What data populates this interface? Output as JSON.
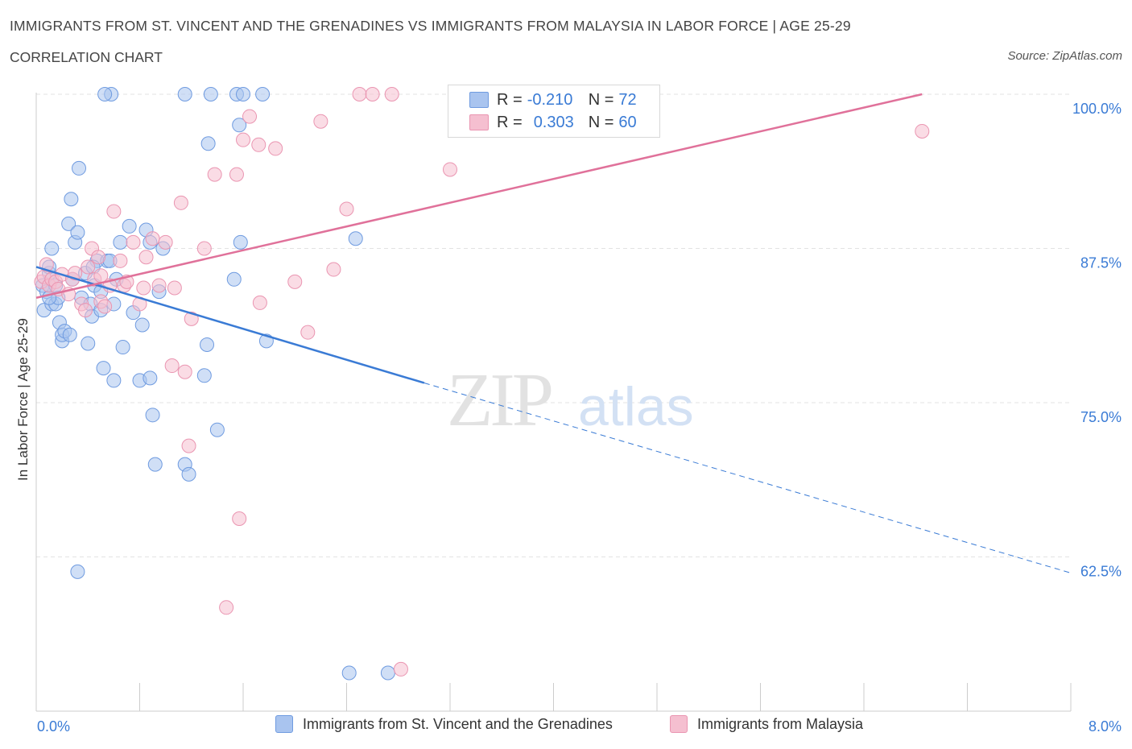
{
  "header": {
    "title": "IMMIGRANTS FROM ST. VINCENT AND THE GRENADINES VS IMMIGRANTS FROM MALAYSIA IN LABOR FORCE | AGE 25-29",
    "subtitle": "CORRELATION CHART",
    "source": "Source: ZipAtlas.com"
  },
  "watermark": {
    "zip": "ZIP",
    "atlas": "atlas"
  },
  "colors": {
    "blue_fill": "#a9c4ef",
    "blue_stroke": "#6f9be0",
    "blue_line": "#3a7bd5",
    "pink_fill": "#f5bfd0",
    "pink_stroke": "#ea95b1",
    "pink_line": "#e0719a",
    "axis_label": "#3a7bd5",
    "grid": "#e3e3e3"
  },
  "legend": {
    "rows": [
      {
        "r_label": "R =",
        "r_value": "-0.210",
        "n_label": "N =",
        "n_value": "72"
      },
      {
        "r_label": "R =",
        "r_value": "0.303",
        "n_label": "N =",
        "n_value": "60"
      }
    ]
  },
  "chart_data": {
    "type": "scatter",
    "title": "IMMIGRANTS FROM ST. VINCENT AND THE GRENADINES VS IMMIGRANTS FROM MALAYSIA IN LABOR FORCE | AGE 25-29",
    "xlabel": "",
    "ylabel": "In Labor Force | Age 25-29",
    "xlim": [
      0,
      8
    ],
    "ylim": [
      50,
      100
    ],
    "x_tick_labels": [
      "0.0%",
      "8.0%"
    ],
    "y_ticks": [
      62.5,
      75.0,
      87.5,
      100.0
    ],
    "y_tick_labels": [
      "62.5%",
      "75.0%",
      "87.5%",
      "100.0%"
    ],
    "grid": true,
    "legend_position": "top-center",
    "series": [
      {
        "name": "Immigrants from St. Vincent and the Grenadines",
        "R": -0.21,
        "N": 72,
        "trend": {
          "x0": 0.0,
          "y0": 86.0,
          "x1": 3.0,
          "y1": 76.6,
          "dash_to_x": 8.0,
          "dash_to_y": 61.2
        },
        "points": [
          [
            0.05,
            84.5
          ],
          [
            0.06,
            82.5
          ],
          [
            0.08,
            84.0
          ],
          [
            0.1,
            85.5
          ],
          [
            0.1,
            86.0
          ],
          [
            0.12,
            83.0
          ],
          [
            0.12,
            87.5
          ],
          [
            0.15,
            84.5
          ],
          [
            0.15,
            83.0
          ],
          [
            0.17,
            83.5
          ],
          [
            0.18,
            81.5
          ],
          [
            0.2,
            80.0
          ],
          [
            0.2,
            80.5
          ],
          [
            0.22,
            80.8
          ],
          [
            0.25,
            89.5
          ],
          [
            0.27,
            91.5
          ],
          [
            0.28,
            85.0
          ],
          [
            0.3,
            88.0
          ],
          [
            0.32,
            88.8
          ],
          [
            0.33,
            94.0
          ],
          [
            0.35,
            83.5
          ],
          [
            0.38,
            85.5
          ],
          [
            0.4,
            79.8
          ],
          [
            0.42,
            83.0
          ],
          [
            0.43,
            82.0
          ],
          [
            0.45,
            84.5
          ],
          [
            0.47,
            86.5
          ],
          [
            0.5,
            82.5
          ],
          [
            0.5,
            84.0
          ],
          [
            0.52,
            77.8
          ],
          [
            0.55,
            86.5
          ],
          [
            0.57,
            86.5
          ],
          [
            0.6,
            83.0
          ],
          [
            0.6,
            76.8
          ],
          [
            0.62,
            85.0
          ],
          [
            0.65,
            88.0
          ],
          [
            0.67,
            79.5
          ],
          [
            0.72,
            89.3
          ],
          [
            0.75,
            82.3
          ],
          [
            0.8,
            76.8
          ],
          [
            0.82,
            81.3
          ],
          [
            0.85,
            89.0
          ],
          [
            0.88,
            88.0
          ],
          [
            0.88,
            77.0
          ],
          [
            0.9,
            74.0
          ],
          [
            0.92,
            70.0
          ],
          [
            0.95,
            84.0
          ],
          [
            0.98,
            87.5
          ],
          [
            0.58,
            100.0
          ],
          [
            0.53,
            100.0
          ],
          [
            1.15,
            100.0
          ],
          [
            1.35,
            100.0
          ],
          [
            1.55,
            100.0
          ],
          [
            1.6,
            100.0
          ],
          [
            1.75,
            100.0
          ],
          [
            1.33,
            96.0
          ],
          [
            1.57,
            97.5
          ],
          [
            1.15,
            70.0
          ],
          [
            1.18,
            69.2
          ],
          [
            1.3,
            77.2
          ],
          [
            1.32,
            79.7
          ],
          [
            1.4,
            72.8
          ],
          [
            1.53,
            85.0
          ],
          [
            1.58,
            88.0
          ],
          [
            1.78,
            80.0
          ],
          [
            2.47,
            88.3
          ],
          [
            2.42,
            53.1
          ],
          [
            2.72,
            53.1
          ],
          [
            0.32,
            61.3
          ],
          [
            0.1,
            83.5
          ],
          [
            0.26,
            80.5
          ],
          [
            0.44,
            86.0
          ]
        ]
      },
      {
        "name": "Immigrants from Malaysia",
        "R": 0.303,
        "N": 60,
        "trend": {
          "x0": 0.0,
          "y0": 83.5,
          "x1": 6.85,
          "y1": 100.0
        },
        "points": [
          [
            0.04,
            84.8
          ],
          [
            0.06,
            85.2
          ],
          [
            0.08,
            86.2
          ],
          [
            0.1,
            84.5
          ],
          [
            0.12,
            85.0
          ],
          [
            0.15,
            84.8
          ],
          [
            0.17,
            84.2
          ],
          [
            0.2,
            85.4
          ],
          [
            0.25,
            83.8
          ],
          [
            0.28,
            85.0
          ],
          [
            0.3,
            85.5
          ],
          [
            0.35,
            83.0
          ],
          [
            0.38,
            82.5
          ],
          [
            0.4,
            86.0
          ],
          [
            0.43,
            87.5
          ],
          [
            0.45,
            85.0
          ],
          [
            0.48,
            86.8
          ],
          [
            0.5,
            83.2
          ],
          [
            0.53,
            82.8
          ],
          [
            0.57,
            84.5
          ],
          [
            0.6,
            90.5
          ],
          [
            0.65,
            86.5
          ],
          [
            0.68,
            84.5
          ],
          [
            0.7,
            84.8
          ],
          [
            0.75,
            88.0
          ],
          [
            0.8,
            83.0
          ],
          [
            0.83,
            84.3
          ],
          [
            0.85,
            86.8
          ],
          [
            0.9,
            88.3
          ],
          [
            0.95,
            84.5
          ],
          [
            1.0,
            88.0
          ],
          [
            1.05,
            78.0
          ],
          [
            1.07,
            84.3
          ],
          [
            1.12,
            91.2
          ],
          [
            1.15,
            77.5
          ],
          [
            1.18,
            71.5
          ],
          [
            1.2,
            81.8
          ],
          [
            1.3,
            87.5
          ],
          [
            1.38,
            93.5
          ],
          [
            1.55,
            93.5
          ],
          [
            1.6,
            96.3
          ],
          [
            1.65,
            98.2
          ],
          [
            1.72,
            95.9
          ],
          [
            1.73,
            83.1
          ],
          [
            1.85,
            95.6
          ],
          [
            2.0,
            84.8
          ],
          [
            2.1,
            80.7
          ],
          [
            2.2,
            97.8
          ],
          [
            2.3,
            85.8
          ],
          [
            2.4,
            90.7
          ],
          [
            2.5,
            100.0
          ],
          [
            2.6,
            100.0
          ],
          [
            2.75,
            100.0
          ],
          [
            3.2,
            93.9
          ],
          [
            3.4,
            100.0
          ],
          [
            6.85,
            97.0
          ],
          [
            1.57,
            65.6
          ],
          [
            1.47,
            58.4
          ],
          [
            2.82,
            53.4
          ],
          [
            0.5,
            85.3
          ]
        ]
      }
    ]
  }
}
